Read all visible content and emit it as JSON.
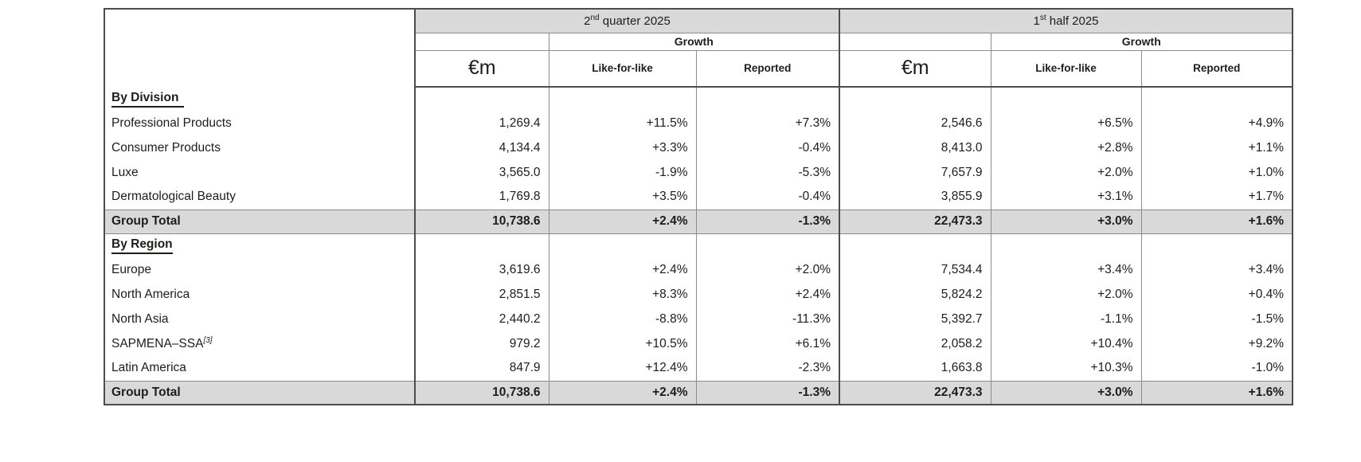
{
  "table": {
    "header": {
      "q2_num": "2",
      "q2_sup": "nd",
      "q2_rest": "quarter 2025",
      "h1_num": "1",
      "h1_sup": "st",
      "h1_rest": "half 2025",
      "growth": "Growth",
      "unit": "€m",
      "like_for_like": "Like-for-like",
      "reported": "Reported"
    },
    "sections": [
      {
        "heading": "By Division",
        "rows": [
          {
            "label": "Professional Products",
            "q2_m": "1,269.4",
            "q2_lfl": "+11.5%",
            "q2_rep": "+7.3%",
            "h1_m": "2,546.6",
            "h1_lfl": "+6.5%",
            "h1_rep": "+4.9%"
          },
          {
            "label": "Consumer Products",
            "q2_m": "4,134.4",
            "q2_lfl": "+3.3%",
            "q2_rep": "-0.4%",
            "h1_m": "8,413.0",
            "h1_lfl": "+2.8%",
            "h1_rep": "+1.1%"
          },
          {
            "label": "Luxe",
            "q2_m": "3,565.0",
            "q2_lfl": "-1.9%",
            "q2_rep": "-5.3%",
            "h1_m": "7,657.9",
            "h1_lfl": "+2.0%",
            "h1_rep": "+1.0%"
          },
          {
            "label": "Dermatological Beauty",
            "q2_m": "1,769.8",
            "q2_lfl": "+3.5%",
            "q2_rep": "-0.4%",
            "h1_m": "3,855.9",
            "h1_lfl": "+3.1%",
            "h1_rep": "+1.7%"
          }
        ],
        "total": {
          "label": "Group Total",
          "q2_m": "10,738.6",
          "q2_lfl": "+2.4%",
          "q2_rep": "-1.3%",
          "h1_m": "22,473.3",
          "h1_lfl": "+3.0%",
          "h1_rep": "+1.6%"
        }
      },
      {
        "heading": "By Region",
        "rows": [
          {
            "label": "Europe",
            "q2_m": "3,619.6",
            "q2_lfl": "+2.4%",
            "q2_rep": "+2.0%",
            "h1_m": "7,534.4",
            "h1_lfl": "+3.4%",
            "h1_rep": "+3.4%"
          },
          {
            "label": "North America",
            "q2_m": "2,851.5",
            "q2_lfl": "+8.3%",
            "q2_rep": "+2.4%",
            "h1_m": "5,824.2",
            "h1_lfl": "+2.0%",
            "h1_rep": "+0.4%"
          },
          {
            "label": "North Asia",
            "q2_m": "2,440.2",
            "q2_lfl": "-8.8%",
            "q2_rep": "-11.3%",
            "h1_m": "5,392.7",
            "h1_lfl": "-1.1%",
            "h1_rep": "-1.5%"
          },
          {
            "label": "SAPMENA–SSA",
            "label_sup": "[3]",
            "q2_m": "979.2",
            "q2_lfl": "+10.5%",
            "q2_rep": "+6.1%",
            "h1_m": "2,058.2",
            "h1_lfl": "+10.4%",
            "h1_rep": "+9.2%"
          },
          {
            "label": "Latin America",
            "q2_m": "847.9",
            "q2_lfl": "+12.4%",
            "q2_rep": "-2.3%",
            "h1_m": "1,663.8",
            "h1_lfl": "+10.3%",
            "h1_rep": "-1.0%"
          }
        ],
        "total": {
          "label": "Group Total",
          "q2_m": "10,738.6",
          "q2_lfl": "+2.4%",
          "q2_rep": "-1.3%",
          "h1_m": "22,473.3",
          "h1_lfl": "+3.0%",
          "h1_rep": "+1.6%"
        }
      }
    ]
  },
  "colors": {
    "header_gray": "#d9d9d9",
    "total_row_gray": "#d9d9d9",
    "border_dark": "#4d4d4d",
    "border_light": "#8c8c8c",
    "text": "#1d1d1b"
  }
}
